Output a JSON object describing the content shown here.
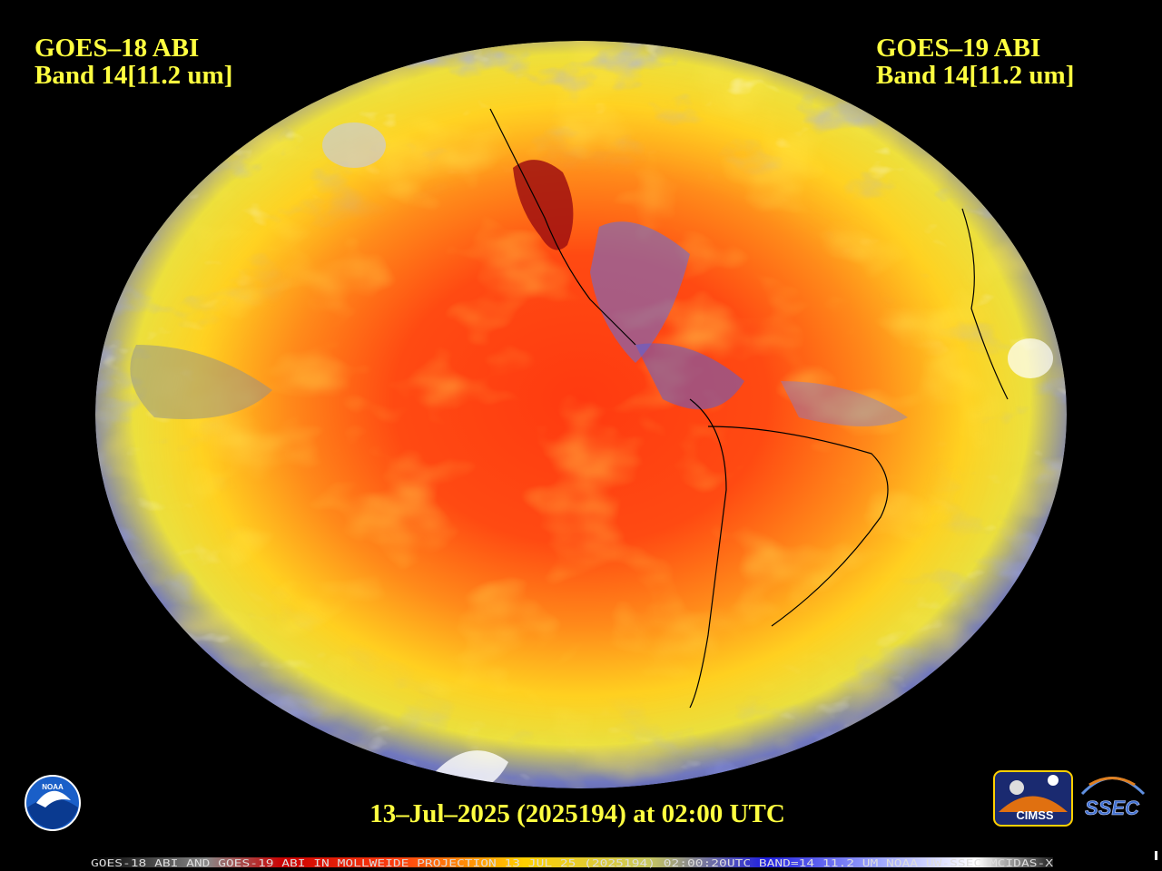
{
  "header": {
    "left": {
      "satellite": "GOES–18 ABI",
      "band": "Band 14[11.2 um]"
    },
    "right": {
      "satellite": "GOES–19 ABI",
      "band": "Band 14[11.2 um]"
    }
  },
  "timestamp": "13–Jul–2025 (2025194) at 02:00 UTC",
  "footer": "GOES-18 ABI AND GOES-19 ABI IN MOLLWEIDE PROJECTION 13 JUL 25 (2025194) 02:00:20UTC BAND=14 11.2 UM NOAA UW-SSEC MCIDAS-X",
  "logos": {
    "noaa": "NOAA",
    "cimss": "CIMSS",
    "ssec": "SSEC"
  }
}
